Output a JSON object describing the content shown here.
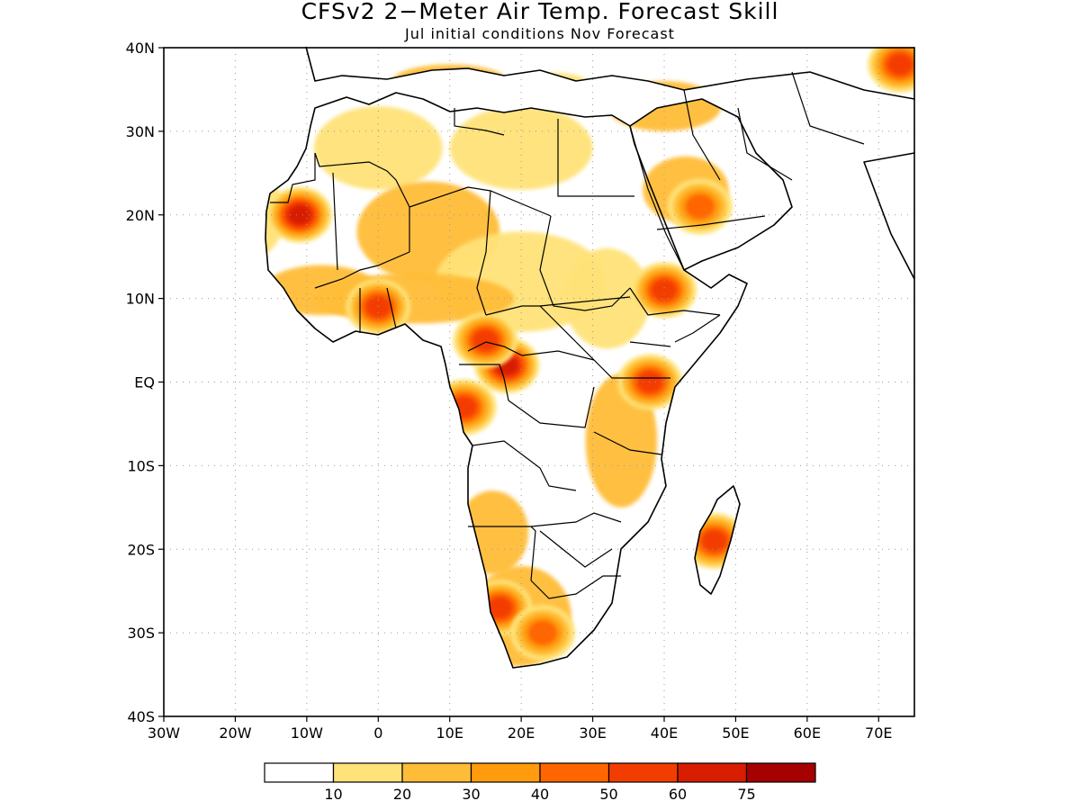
{
  "title": "CFSv2 2−Meter Air Temp. Forecast Skill",
  "subtitle": "Jul initial conditions   Nov Forecast",
  "lat_labels": [
    "40N",
    "30N",
    "20N",
    "10N",
    "EQ",
    "10S",
    "20S",
    "30S",
    "40S"
  ],
  "lon_labels": [
    "30W",
    "20W",
    "10W",
    "0",
    "10E",
    "20E",
    "30E",
    "40E",
    "50E",
    "60E",
    "70E"
  ],
  "colorbar": {
    "colors": [
      "#ffffff",
      "#ffe278",
      "#ffbd37",
      "#ff9b0c",
      "#ff6600",
      "#f33d00",
      "#d81d00",
      "#a70000"
    ],
    "labels": [
      "10",
      "20",
      "30",
      "40",
      "50",
      "60",
      "75"
    ]
  },
  "chart_data": {
    "type": "heatmap",
    "variable": "2-meter air temperature forecast skill",
    "region": "Africa",
    "lat_range": [
      -40,
      40
    ],
    "lon_range": [
      -30,
      75
    ],
    "levels": [
      10,
      20,
      30,
      40,
      50,
      60,
      75
    ],
    "grid": "dotted",
    "high_skill_regions": [
      {
        "lon": -11,
        "lat": 20,
        "value": 60
      },
      {
        "lon": 0,
        "lat": 9,
        "value": 55
      },
      {
        "lon": 18,
        "lat": 2,
        "value": 60
      },
      {
        "lon": 15,
        "lat": 5,
        "value": 50
      },
      {
        "lon": 12,
        "lat": -3,
        "value": 50
      },
      {
        "lon": 40,
        "lat": 11,
        "value": 55
      },
      {
        "lon": 38,
        "lat": 0,
        "value": 50
      },
      {
        "lon": 47,
        "lat": -19,
        "value": 55
      },
      {
        "lon": 17,
        "lat": -27,
        "value": 55
      },
      {
        "lon": 23,
        "lat": -30,
        "value": 45
      },
      {
        "lon": 45,
        "lat": 21,
        "value": 40
      },
      {
        "lon": 73,
        "lat": 38,
        "value": 50
      }
    ]
  }
}
